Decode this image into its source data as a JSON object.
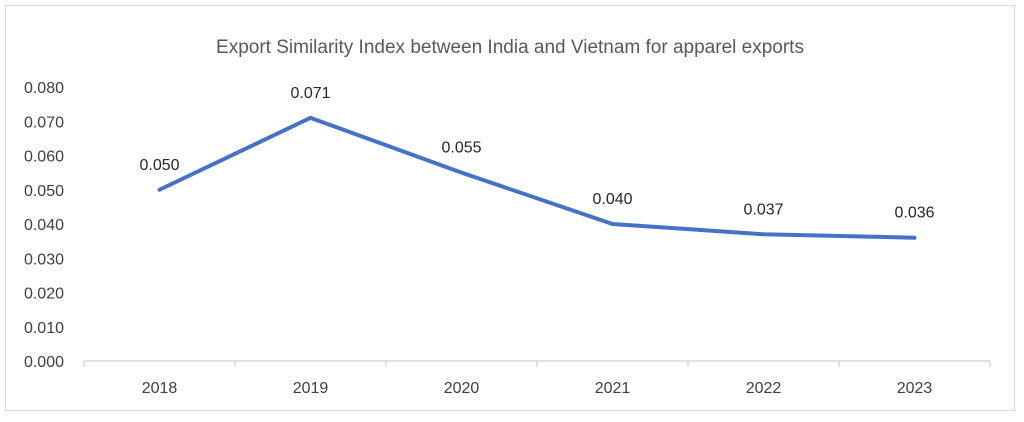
{
  "chart_data": {
    "type": "line",
    "title": "Export Similarity Index between India and Vietnam for apparel exports",
    "xlabel": "",
    "ylabel": "",
    "categories": [
      "2018",
      "2019",
      "2020",
      "2021",
      "2022",
      "2023"
    ],
    "series": [
      {
        "values": [
          0.05,
          0.071,
          0.055,
          0.04,
          0.037,
          0.036
        ],
        "labels": [
          "0.050",
          "0.071",
          "0.055",
          "0.040",
          "0.037",
          "0.036"
        ],
        "color": "#4472c4"
      }
    ],
    "ylim": [
      0,
      0.08
    ],
    "y_ticks": [
      "0.000",
      "0.010",
      "0.020",
      "0.030",
      "0.040",
      "0.050",
      "0.060",
      "0.070",
      "0.080"
    ],
    "grid": false,
    "legend": "none",
    "axis_color": "#d9d9d9"
  }
}
